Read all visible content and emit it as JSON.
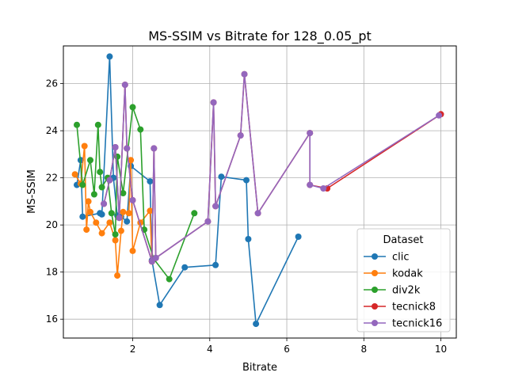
{
  "chart_data": {
    "type": "line",
    "title": "MS-SSIM vs Bitrate for 128_0.05_pt",
    "xlabel": "Bitrate",
    "ylabel": "MS-SSIM",
    "xlim": [
      0.2,
      10.4
    ],
    "ylim": [
      15.2,
      27.6
    ],
    "xticks": [
      2,
      4,
      6,
      8,
      10
    ],
    "yticks": [
      16,
      18,
      20,
      22,
      24,
      26
    ],
    "grid": true,
    "legend": {
      "title": "Dataset",
      "placement": "lower right"
    },
    "series": [
      {
        "name": "clic",
        "color": "#1f77b4",
        "points": [
          [
            0.55,
            21.7
          ],
          [
            0.65,
            22.75
          ],
          [
            0.7,
            20.35
          ],
          [
            1.15,
            20.5
          ],
          [
            1.2,
            20.45
          ],
          [
            1.4,
            27.15
          ],
          [
            1.5,
            22.0
          ],
          [
            1.6,
            20.4
          ],
          [
            1.7,
            20.35
          ],
          [
            1.85,
            20.15
          ],
          [
            1.95,
            22.5
          ],
          [
            2.45,
            21.85
          ],
          [
            2.5,
            18.5
          ],
          [
            2.7,
            16.6
          ],
          [
            3.35,
            18.2
          ],
          [
            4.15,
            18.3
          ],
          [
            4.3,
            22.05
          ],
          [
            4.95,
            21.9
          ],
          [
            5.0,
            19.4
          ],
          [
            5.2,
            15.8
          ],
          [
            6.3,
            19.5
          ]
        ]
      },
      {
        "name": "kodak",
        "color": "#ff7f0e",
        "points": [
          [
            0.5,
            22.15
          ],
          [
            0.65,
            21.75
          ],
          [
            0.75,
            23.35
          ],
          [
            0.8,
            19.8
          ],
          [
            0.85,
            21.0
          ],
          [
            0.9,
            20.55
          ],
          [
            1.05,
            20.1
          ],
          [
            1.2,
            19.65
          ],
          [
            1.4,
            20.1
          ],
          [
            1.55,
            19.35
          ],
          [
            1.6,
            17.85
          ],
          [
            1.7,
            19.75
          ],
          [
            1.75,
            20.55
          ],
          [
            1.9,
            20.5
          ],
          [
            1.95,
            22.75
          ],
          [
            2.0,
            18.9
          ],
          [
            2.2,
            20.1
          ],
          [
            2.45,
            20.6
          ],
          [
            2.5,
            18.45
          ]
        ]
      },
      {
        "name": "div2k",
        "color": "#2ca02c",
        "points": [
          [
            0.55,
            24.25
          ],
          [
            0.7,
            21.7
          ],
          [
            0.9,
            22.75
          ],
          [
            1.0,
            21.3
          ],
          [
            1.1,
            24.25
          ],
          [
            1.15,
            22.25
          ],
          [
            1.2,
            21.6
          ],
          [
            1.35,
            22.0
          ],
          [
            1.45,
            20.5
          ],
          [
            1.55,
            19.6
          ],
          [
            1.6,
            22.9
          ],
          [
            1.75,
            21.35
          ],
          [
            2.0,
            25.0
          ],
          [
            2.2,
            24.05
          ],
          [
            2.3,
            19.8
          ],
          [
            2.55,
            18.55
          ],
          [
            2.95,
            17.7
          ],
          [
            3.6,
            20.5
          ]
        ]
      },
      {
        "name": "tecnick8",
        "color": "#d62728",
        "points": [
          [
            1.25,
            20.9
          ],
          [
            1.4,
            21.9
          ],
          [
            1.55,
            23.3
          ],
          [
            1.65,
            20.3
          ],
          [
            1.8,
            25.95
          ],
          [
            1.85,
            23.25
          ],
          [
            2.0,
            21.05
          ],
          [
            2.5,
            18.45
          ],
          [
            2.55,
            23.25
          ],
          [
            2.6,
            18.6
          ],
          [
            3.95,
            20.15
          ],
          [
            4.1,
            25.2
          ],
          [
            4.15,
            20.8
          ],
          [
            4.8,
            23.8
          ],
          [
            4.9,
            26.4
          ],
          [
            5.25,
            20.5
          ],
          [
            6.6,
            23.9
          ],
          [
            6.6,
            21.7
          ],
          [
            7.05,
            21.55
          ],
          [
            10.0,
            24.7
          ]
        ]
      },
      {
        "name": "tecnick16",
        "color": "#9467bd",
        "points": [
          [
            1.25,
            20.9
          ],
          [
            1.4,
            21.9
          ],
          [
            1.55,
            23.3
          ],
          [
            1.65,
            20.3
          ],
          [
            1.8,
            25.95
          ],
          [
            1.85,
            23.25
          ],
          [
            2.0,
            21.05
          ],
          [
            2.5,
            18.45
          ],
          [
            2.55,
            23.25
          ],
          [
            2.6,
            18.6
          ],
          [
            3.95,
            20.15
          ],
          [
            4.1,
            25.2
          ],
          [
            4.15,
            20.8
          ],
          [
            4.8,
            23.8
          ],
          [
            4.9,
            26.4
          ],
          [
            5.25,
            20.5
          ],
          [
            6.6,
            23.9
          ],
          [
            6.6,
            21.7
          ],
          [
            6.95,
            21.55
          ],
          [
            9.95,
            24.65
          ]
        ]
      }
    ]
  }
}
